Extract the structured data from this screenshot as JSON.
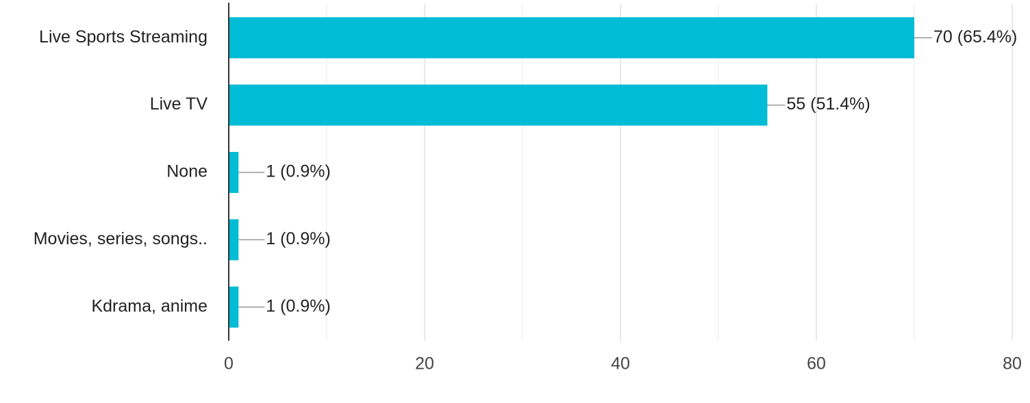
{
  "chart_data": {
    "type": "bar",
    "orientation": "horizontal",
    "categories": [
      "Live Sports Streaming",
      "Live TV",
      "None",
      "Movies, series, songs..",
      "Kdrama, anime"
    ],
    "values": [
      70,
      55,
      1,
      1,
      1
    ],
    "value_labels": [
      "70 (65.4%)",
      "55 (51.4%)",
      "1 (0.9%)",
      "1 (0.9%)",
      "1 (0.9%)"
    ],
    "color": "#00bcd4",
    "xlim": [
      0,
      80
    ],
    "xticks": [
      0,
      20,
      40,
      60,
      80
    ],
    "minor_grid": [
      10,
      30,
      50,
      70
    ],
    "grid": true
  }
}
